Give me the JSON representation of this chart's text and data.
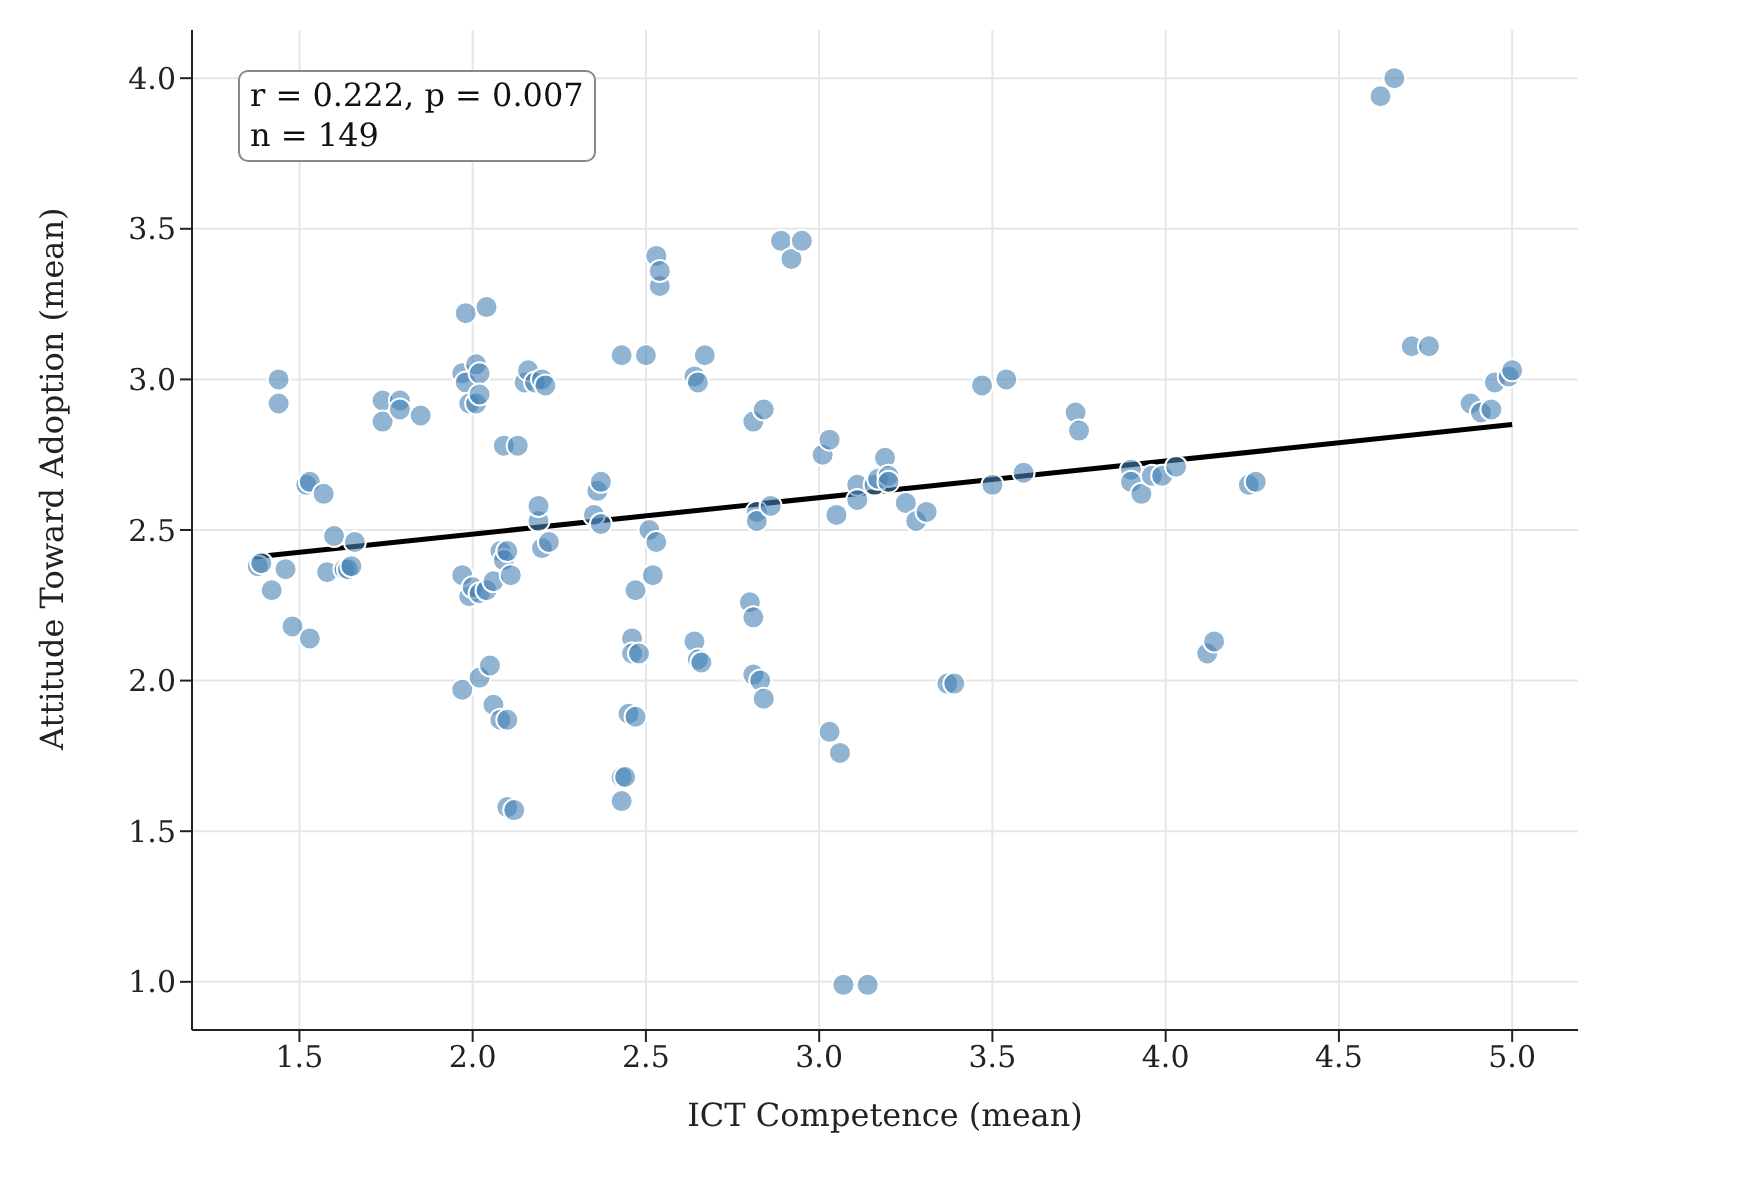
{
  "chart_data": {
    "type": "scatter",
    "xlabel": "ICT Competence (mean)",
    "ylabel": "Attitude Toward Adoption (mean)",
    "annotations": [
      "r = 0.222, p = 0.007",
      "n = 149"
    ],
    "xlim": [
      1.19,
      5.19
    ],
    "xticks": [
      1.5,
      {
        "value": 2,
        "label": "2.0"
      },
      2.5,
      {
        "value": 3,
        "label": "3.0"
      },
      3.5,
      {
        "value": 4,
        "label": "4.0"
      },
      4.5,
      {
        "value": 5,
        "label": "5.0"
      }
    ],
    "ylim": [
      0.84,
      4.16
    ],
    "yticks": [
      {
        "value": 1,
        "label": "1.0"
      },
      1.5,
      {
        "value": 2,
        "label": "2.0"
      },
      2.5,
      {
        "value": 3,
        "label": "3.0"
      },
      3.5,
      {
        "value": 4,
        "label": "4.0"
      }
    ],
    "grid": true,
    "series": [
      {
        "color": "#4682b4",
        "marker": "circle",
        "x": [
          1.38,
          1.39,
          1.42,
          1.44,
          1.44,
          1.46,
          1.48,
          1.52,
          1.53,
          1.53,
          1.57,
          1.58,
          1.6,
          1.63,
          1.64,
          1.65,
          1.66,
          1.74,
          1.74,
          1.79,
          1.79,
          1.85,
          1.97,
          1.98,
          1.98,
          1.97,
          1.97,
          1.99,
          1.99,
          2.0,
          2.01,
          2.01,
          2.02,
          2.02,
          2.02,
          2.02,
          2.04,
          2.04,
          2.05,
          2.06,
          2.06,
          2.08,
          2.08,
          2.09,
          2.09,
          2.1,
          2.1,
          2.1,
          2.11,
          2.12,
          2.13,
          2.15,
          2.16,
          2.18,
          2.19,
          2.19,
          2.2,
          2.2,
          2.21,
          2.22,
          2.35,
          2.36,
          2.37,
          2.37,
          2.43,
          2.43,
          2.43,
          2.44,
          2.45,
          2.46,
          2.46,
          2.47,
          2.47,
          2.48,
          2.5,
          2.51,
          2.52,
          2.53,
          2.53,
          2.54,
          2.54,
          2.64,
          2.64,
          2.65,
          2.65,
          2.66,
          2.67,
          2.8,
          2.81,
          2.81,
          2.81,
          2.82,
          2.82,
          2.83,
          2.84,
          2.84,
          2.86,
          2.89,
          2.92,
          2.95,
          3.01,
          3.03,
          3.03,
          3.05,
          3.06,
          3.07,
          3.11,
          3.11,
          3.14,
          3.16,
          3.17,
          3.19,
          3.2,
          3.2,
          3.25,
          3.28,
          3.31,
          3.37,
          3.39,
          3.47,
          3.5,
          3.54,
          3.59,
          3.74,
          3.75,
          3.9,
          3.9,
          3.93,
          3.96,
          3.99,
          4.03,
          4.12,
          4.14,
          4.24,
          4.26,
          4.62,
          4.66,
          4.71,
          4.76,
          4.88,
          4.91,
          4.94,
          4.95,
          4.99,
          5.0
        ],
        "values": [
          2.38,
          2.39,
          2.3,
          3.0,
          2.92,
          2.37,
          2.18,
          2.65,
          2.66,
          2.14,
          2.62,
          2.36,
          2.48,
          2.37,
          2.37,
          2.38,
          2.46,
          2.93,
          2.86,
          2.93,
          2.9,
          2.88,
          3.02,
          3.22,
          2.99,
          2.35,
          1.97,
          2.92,
          2.28,
          2.31,
          3.05,
          2.92,
          3.02,
          2.95,
          2.29,
          2.01,
          3.24,
          2.3,
          2.05,
          2.33,
          1.92,
          2.43,
          1.87,
          2.78,
          2.4,
          2.43,
          1.87,
          1.58,
          2.35,
          1.57,
          2.78,
          2.99,
          3.03,
          2.99,
          2.53,
          2.58,
          2.44,
          3.0,
          2.98,
          2.46,
          2.55,
          2.63,
          2.66,
          2.52,
          3.08,
          1.68,
          1.6,
          1.68,
          1.89,
          2.14,
          2.09,
          2.3,
          1.88,
          2.09,
          3.08,
          2.5,
          2.35,
          3.41,
          2.46,
          3.31,
          3.36,
          3.01,
          2.13,
          2.07,
          2.99,
          2.06,
          3.08,
          2.26,
          2.86,
          2.02,
          2.21,
          2.56,
          2.53,
          2.0,
          1.94,
          2.9,
          2.58,
          3.46,
          3.4,
          3.46,
          2.75,
          2.8,
          1.83,
          2.55,
          1.76,
          0.99,
          2.65,
          2.6,
          0.99,
          2.65,
          2.67,
          2.74,
          2.68,
          2.66,
          2.59,
          2.53,
          2.56,
          1.99,
          1.99,
          2.98,
          2.65,
          3.0,
          2.69,
          2.89,
          2.83,
          2.7,
          2.66,
          2.62,
          2.68,
          2.68,
          2.71,
          2.09,
          2.13,
          2.65,
          2.66,
          3.94,
          4.0,
          3.11,
          3.11,
          2.92,
          2.89,
          2.9,
          2.99,
          3.01,
          3.03
        ]
      },
      {
        "type": "line",
        "color": "#000000",
        "x": [
          1.37,
          5.0
        ],
        "values": [
          2.41,
          2.85
        ]
      }
    ]
  }
}
